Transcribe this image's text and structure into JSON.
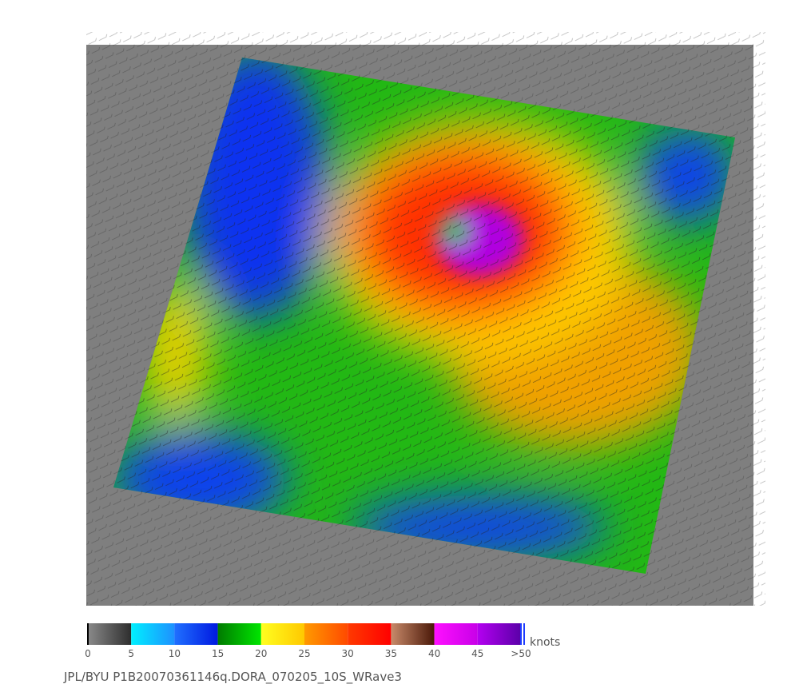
{
  "colorbar": {
    "ticks": [
      0,
      5,
      10,
      15,
      20,
      25,
      30,
      35,
      40,
      45,
      {
        "value": 50,
        "label": ">50"
      }
    ],
    "colors": [
      [
        "#8a8a8a",
        "#2e2e2e"
      ],
      [
        "#00f0ff",
        "#1e90ff"
      ],
      [
        "#2070ff",
        "#0018e0"
      ],
      [
        "#007a00",
        "#00e600"
      ],
      [
        "#ffff20",
        "#ffc800"
      ],
      [
        "#ff9a00",
        "#ff4a00"
      ],
      [
        "#ff3a00",
        "#ff0000"
      ],
      [
        "#c88a6a",
        "#4a1808"
      ],
      [
        "#ff10ff",
        "#c800e8"
      ],
      [
        "#b400f0",
        "#5a00a8"
      ]
    ],
    "unit": "knots"
  },
  "caption": "JPL/BYU  P1B20070361146q.DORA_070205_10S_WRave3"
}
